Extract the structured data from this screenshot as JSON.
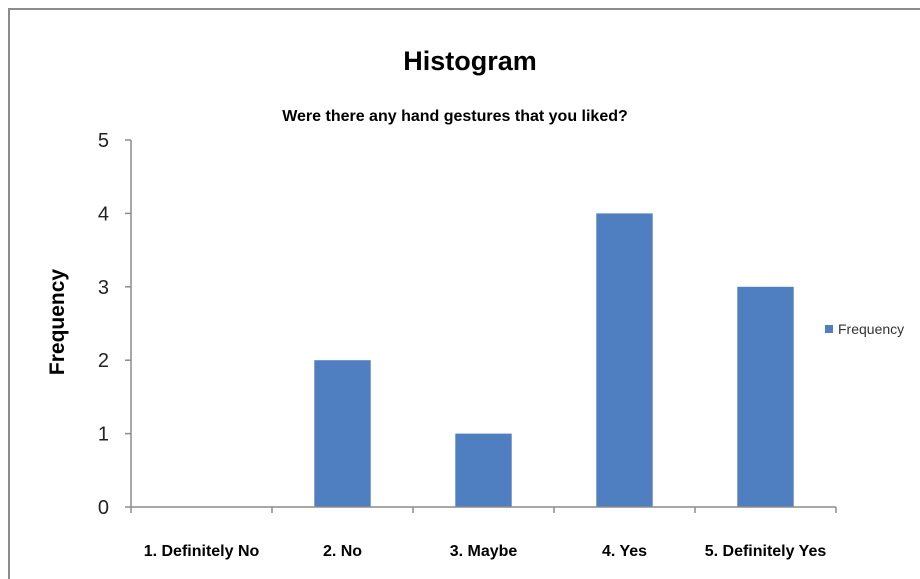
{
  "chart_data": {
    "type": "bar",
    "title": "Histogram",
    "subtitle": "Were there any hand gestures that you liked?",
    "xlabel": "",
    "ylabel": "Frequency",
    "categories": [
      "1. Definitely No",
      "2. No",
      "3. Maybe",
      "4. Yes",
      "5. Definitely Yes"
    ],
    "series": [
      {
        "name": "Frequency",
        "values": [
          0,
          2,
          1,
          4,
          3
        ],
        "color": "#4f7ec1"
      }
    ],
    "ylim": [
      0,
      5
    ],
    "yticks": [
      "0",
      "1",
      "2",
      "3",
      "4",
      "5"
    ],
    "grid": false,
    "legend": "right"
  }
}
